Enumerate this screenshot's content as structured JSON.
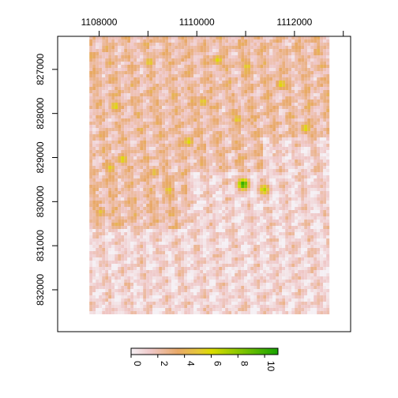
{
  "chart_data": {
    "type": "heatmap",
    "title": "",
    "xlabel": "",
    "ylabel": "",
    "x_axis": {
      "position": "top",
      "range": [
        1107150,
        1113150
      ],
      "ticks": [
        1108000,
        1110000,
        1112000
      ],
      "tick_labels": [
        "1108000",
        "1110000",
        "1112000"
      ]
    },
    "y_axis": {
      "position": "left",
      "inverted": true,
      "range": [
        826250,
        832950
      ],
      "ticks": [
        827000,
        828000,
        829000,
        830000,
        831000,
        832000
      ],
      "tick_labels": [
        "827000",
        "828000",
        "829000",
        "830000",
        "831000",
        "832000"
      ]
    },
    "raster_extent": {
      "x": [
        1107800,
        1112700
      ],
      "y": [
        826200,
        832550
      ]
    },
    "value_range": [
      0,
      11
    ],
    "colorbar": {
      "orientation": "horizontal",
      "placement": "bottom",
      "ticks": [
        0,
        2,
        4,
        6,
        8,
        10
      ],
      "tick_labels": [
        "0",
        "2",
        "4",
        "6",
        "8",
        "10"
      ],
      "colors": [
        "#f5f0f4",
        "#efc7c7",
        "#e8a867",
        "#e6c63a",
        "#dcdc00",
        "#8cc800",
        "#17a300"
      ],
      "stops": [
        0,
        1.5,
        3.5,
        5,
        6,
        8,
        11
      ]
    },
    "hotspots": [
      {
        "x": 1110920,
        "y": 829570,
        "value": 10.5
      },
      {
        "x": 1111350,
        "y": 829690,
        "value": 7
      },
      {
        "x": 1108300,
        "y": 827800,
        "value": 6
      },
      {
        "x": 1108450,
        "y": 829000,
        "value": 6
      },
      {
        "x": 1109800,
        "y": 828600,
        "value": 6
      },
      {
        "x": 1110400,
        "y": 826750,
        "value": 6
      },
      {
        "x": 1111700,
        "y": 827300,
        "value": 6
      },
      {
        "x": 1112200,
        "y": 828300,
        "value": 6
      },
      {
        "x": 1109000,
        "y": 826800,
        "value": 5.5
      },
      {
        "x": 1108200,
        "y": 829200,
        "value": 5.5
      },
      {
        "x": 1110800,
        "y": 828100,
        "value": 5.5
      },
      {
        "x": 1109400,
        "y": 829700,
        "value": 5.5
      },
      {
        "x": 1109100,
        "y": 829300,
        "value": 5
      },
      {
        "x": 1108000,
        "y": 830200,
        "value": 5
      },
      {
        "x": 1110100,
        "y": 827700,
        "value": 5.5
      },
      {
        "x": 1111000,
        "y": 826900,
        "value": 5.5
      }
    ],
    "grid": false,
    "legend": "colorbar-bottom"
  }
}
